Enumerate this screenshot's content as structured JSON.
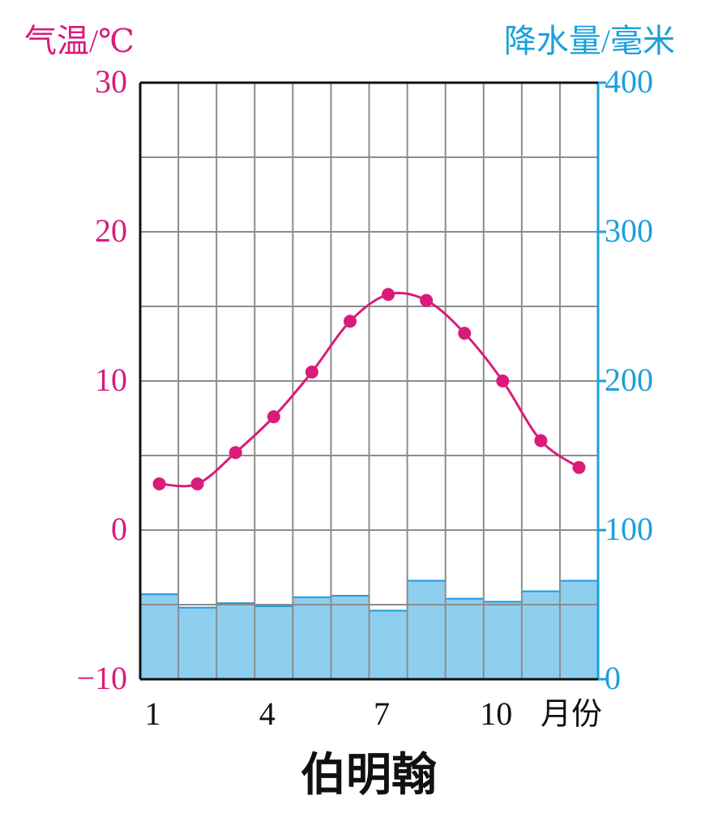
{
  "chart_data": {
    "type": "combo",
    "title": "伯明翰",
    "ylabel": "气温/℃",
    "y2label": "降水量/毫米",
    "xlabel": "月份",
    "categories": [
      "1",
      null,
      null,
      "4",
      null,
      null,
      "7",
      null,
      null,
      "10",
      null,
      null
    ],
    "ylim": [
      -10,
      30
    ],
    "yticks": [
      {
        "value": -10,
        "label": "−10"
      },
      0,
      10,
      20,
      30
    ],
    "y2lim": [
      0,
      400
    ],
    "y2ticks": [
      0,
      100,
      200,
      300,
      400
    ],
    "grid": true,
    "series": [
      {
        "name": "降水量",
        "type": "bar",
        "axis": "y2",
        "color": "#8ecff0",
        "values": [
          57,
          48,
          51,
          49,
          55,
          56,
          46,
          66,
          54,
          52,
          59,
          66
        ]
      },
      {
        "name": "气温",
        "type": "line",
        "axis": "y",
        "color": "#d91c7a",
        "values": [
          3.1,
          3.1,
          5.2,
          7.6,
          10.6,
          14.0,
          15.8,
          15.4,
          13.2,
          10.0,
          6.0,
          4.2
        ]
      }
    ]
  }
}
